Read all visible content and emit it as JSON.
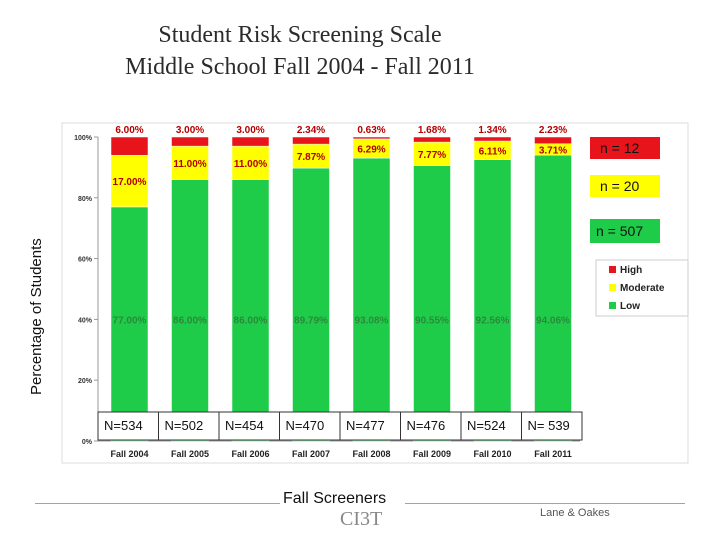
{
  "chart_data": {
    "type": "bar",
    "stacked": true,
    "title": "Student Risk Screening Scale",
    "subtitle": "Middle School Fall 2004  -  Fall 2011",
    "ylabel": "Percentage of Students",
    "ylim": [
      0,
      100
    ],
    "yticks": [
      "0%",
      "20%",
      "40%",
      "60%",
      "80%",
      "100%"
    ],
    "categories": [
      "Fall 2004",
      "Fall 2005",
      "Fall 2006",
      "Fall 2007",
      "Fall 2008",
      "Fall 2009",
      "Fall 2010",
      "Fall 2011"
    ],
    "series": [
      {
        "name": "Low",
        "color": "#1fcc4a",
        "values": [
          77.0,
          86.0,
          86.0,
          89.79,
          93.08,
          90.55,
          92.56,
          94.06
        ],
        "labels": [
          "77.00%",
          "86.00%",
          "86.00%",
          "89.79%",
          "93.08%",
          "90.55%",
          "92.56%",
          "94.06%"
        ]
      },
      {
        "name": "Moderate",
        "color": "#ffff00",
        "values": [
          17.0,
          11.0,
          11.0,
          7.87,
          6.29,
          7.77,
          6.11,
          3.71
        ],
        "labels": [
          "17.00%",
          "11.00%",
          "11.00%",
          "7.87%",
          "6.29%",
          "7.77%",
          "6.11%",
          "3.71%"
        ]
      },
      {
        "name": "High",
        "color": "#e8141c",
        "values": [
          6.0,
          3.0,
          3.0,
          2.34,
          0.63,
          1.68,
          1.34,
          2.23
        ],
        "labels": [
          "6.00%",
          "3.00%",
          "3.00%",
          "2.34%",
          "0.63%",
          "1.68%",
          "1.34%",
          "2.23%"
        ]
      }
    ],
    "n_labels": [
      "N=534",
      "N=502",
      "N=454",
      "N=470",
      "N=477",
      "N=476",
      "N=524",
      "N= 539"
    ],
    "legend": {
      "position": "right",
      "entries": [
        "High",
        "Moderate",
        "Low"
      ]
    },
    "annotations": [
      "n = 12",
      "n = 20",
      "n = 507"
    ]
  },
  "footer": {
    "left_text": "Fall Screeners",
    "logo_text": "CI3T",
    "right_text": "Lane & Oakes"
  }
}
